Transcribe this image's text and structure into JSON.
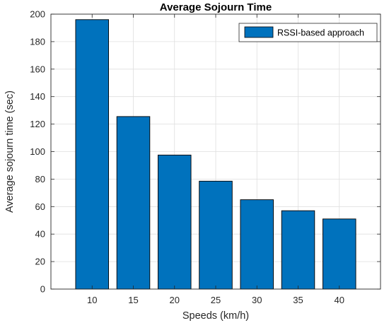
{
  "chart_data": {
    "type": "bar",
    "title": "Average Sojourn Time",
    "xlabel": "Speeds (km/h)",
    "ylabel": "Average sojourn time (sec)",
    "categories": [
      "10",
      "15",
      "20",
      "25",
      "30",
      "35",
      "40"
    ],
    "series": [
      {
        "name": "RSSI-based approach",
        "values": [
          196,
          125.5,
          97.5,
          78.5,
          65,
          57,
          51
        ],
        "color": "#0072BD"
      }
    ],
    "ylim": [
      0,
      200
    ],
    "yticks": [
      "0",
      "20",
      "40",
      "60",
      "80",
      "100",
      "120",
      "140",
      "160",
      "180",
      "200"
    ],
    "grid": true,
    "legend_position": "top-right"
  }
}
